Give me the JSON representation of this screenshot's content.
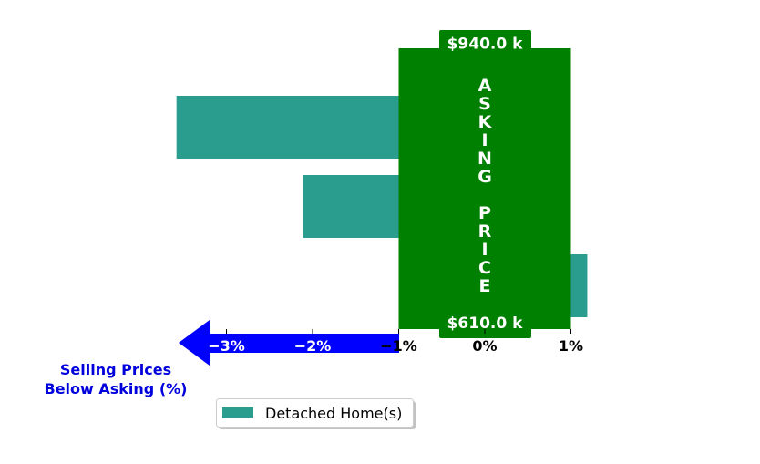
{
  "chart_data": {
    "type": "bar",
    "orientation": "horizontal",
    "categories": [
      "",
      "",
      ""
    ],
    "series": [
      {
        "name": "Detached Home(s)",
        "color": "#2a9d8f",
        "values": [
          -3.58,
          -2.11,
          1.19
        ]
      }
    ],
    "xlim": [
      -3.7,
      1.3
    ],
    "xticks": [
      -3,
      -2,
      -1,
      0,
      1
    ],
    "xtick_labels": [
      "−3%",
      "−2%",
      "−1%",
      "0%",
      "1%"
    ],
    "xlabel": "Selling Prices\nBelow Asking (%)",
    "legend": {
      "position": "bottom-left",
      "entries": [
        "Detached Home(s)"
      ]
    },
    "grid": false,
    "asking_price_band": {
      "label": "ASKING PRICE",
      "from": -1,
      "to": 1,
      "top_value": "$940.0 k",
      "bottom_value": "$610.0 k",
      "color": "#008000"
    },
    "arrow_direction": "left",
    "colors": {
      "arrow": "#0000ff",
      "xlabel": "#0000dd",
      "tick_on_arrow": "#ffffff",
      "tick": "#000000"
    }
  }
}
